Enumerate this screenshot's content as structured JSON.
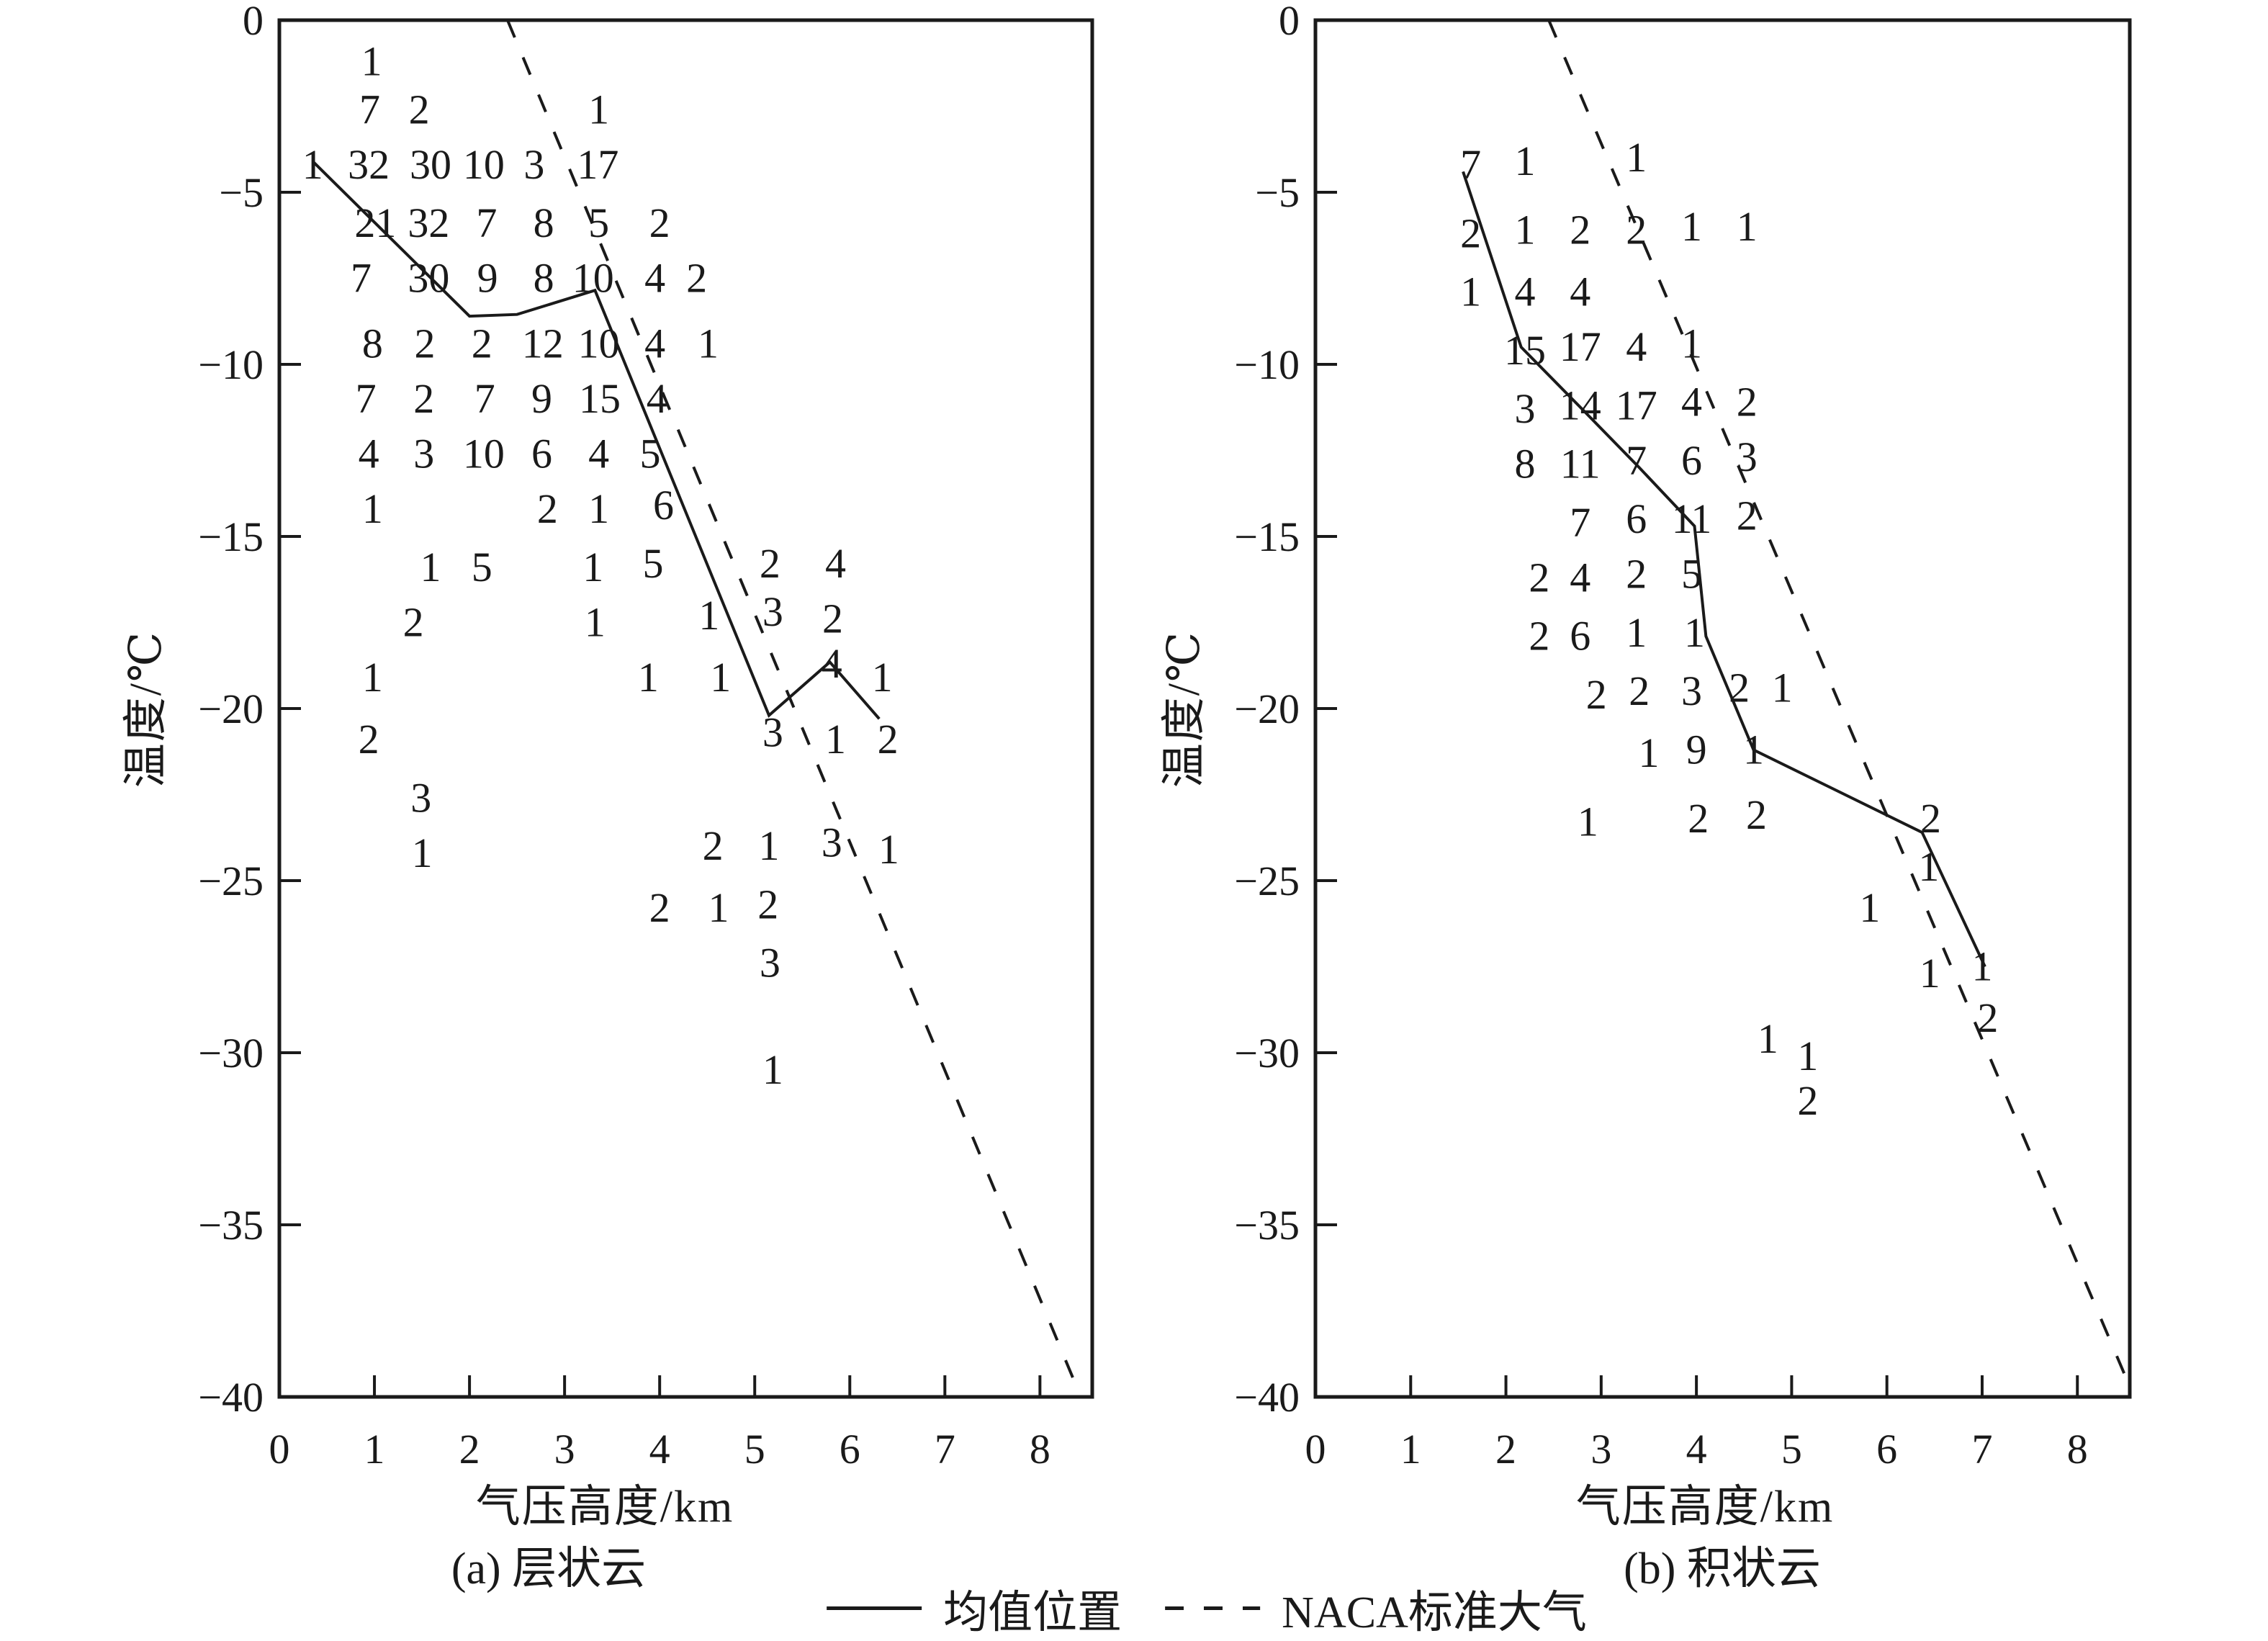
{
  "figure": {
    "description": "两幅云内观测频数分布图：温度随气压高度的散点计数，含均值位置折线与NACA标准大气虚线",
    "background": "#ffffff"
  },
  "colors": {
    "ink": "#1a1a1a",
    "background": "#ffffff"
  },
  "legend": {
    "mean_label": "均值位置",
    "naca_label": "NACA标准大气",
    "position": "bottom-center"
  },
  "chart_data": [
    {
      "type": "scatter",
      "panel": "a",
      "title": "(a) 层状云",
      "xlabel": "气压高度/km",
      "ylabel": "温度/℃",
      "xlim": [
        0,
        8.55
      ],
      "ylim": [
        -40,
        0
      ],
      "x_ticks": [
        0,
        1,
        2,
        3,
        4,
        5,
        6,
        7,
        8
      ],
      "y_ticks": [
        0,
        -5,
        -10,
        -15,
        -20,
        -25,
        -30,
        -35,
        -40
      ],
      "grid": false,
      "counts": [
        [
          0.97,
          -1.2,
          1
        ],
        [
          0.95,
          -2.6,
          7
        ],
        [
          1.47,
          -2.6,
          2
        ],
        [
          3.36,
          -2.6,
          1
        ],
        [
          0.35,
          -4.2,
          1
        ],
        [
          0.94,
          -4.2,
          32
        ],
        [
          1.59,
          -4.2,
          30
        ],
        [
          2.15,
          -4.2,
          10
        ],
        [
          2.68,
          -4.2,
          3
        ],
        [
          3.35,
          -4.2,
          17
        ],
        [
          1.01,
          -5.9,
          21
        ],
        [
          1.57,
          -5.9,
          32
        ],
        [
          2.18,
          -5.9,
          7
        ],
        [
          2.78,
          -5.9,
          8
        ],
        [
          3.36,
          -5.9,
          5
        ],
        [
          4.0,
          -5.9,
          2
        ],
        [
          0.86,
          -7.5,
          7
        ],
        [
          1.57,
          -7.5,
          30
        ],
        [
          2.19,
          -7.5,
          9
        ],
        [
          2.78,
          -7.5,
          8
        ],
        [
          3.3,
          -7.5,
          10
        ],
        [
          3.95,
          -7.5,
          4
        ],
        [
          4.39,
          -7.5,
          2
        ],
        [
          0.98,
          -9.4,
          8
        ],
        [
          1.53,
          -9.4,
          2
        ],
        [
          2.13,
          -9.4,
          2
        ],
        [
          2.77,
          -9.4,
          12
        ],
        [
          3.36,
          -9.4,
          10
        ],
        [
          3.95,
          -9.4,
          4
        ],
        [
          4.51,
          -9.4,
          1
        ],
        [
          0.91,
          -11.0,
          7
        ],
        [
          1.52,
          -11.0,
          2
        ],
        [
          2.16,
          -11.0,
          7
        ],
        [
          2.76,
          -11.0,
          9
        ],
        [
          3.37,
          -11.0,
          15
        ],
        [
          3.97,
          -11.0,
          4
        ],
        [
          0.94,
          -12.6,
          4
        ],
        [
          1.52,
          -12.6,
          3
        ],
        [
          2.15,
          -12.6,
          10
        ],
        [
          2.76,
          -12.6,
          6
        ],
        [
          3.36,
          -12.6,
          4
        ],
        [
          3.9,
          -12.6,
          5
        ],
        [
          0.98,
          -14.2,
          1
        ],
        [
          2.82,
          -14.2,
          2
        ],
        [
          3.36,
          -14.2,
          1
        ],
        [
          4.04,
          -14.1,
          6
        ],
        [
          1.59,
          -15.9,
          1
        ],
        [
          2.13,
          -15.9,
          5
        ],
        [
          3.3,
          -15.9,
          1
        ],
        [
          3.93,
          -15.8,
          5
        ],
        [
          5.16,
          -15.8,
          2
        ],
        [
          5.85,
          -15.8,
          4
        ],
        [
          1.41,
          -17.5,
          2
        ],
        [
          3.32,
          -17.5,
          1
        ],
        [
          4.52,
          -17.3,
          1
        ],
        [
          5.19,
          -17.2,
          3
        ],
        [
          5.82,
          -17.4,
          2
        ],
        [
          0.98,
          -19.1,
          1
        ],
        [
          3.88,
          -19.1,
          1
        ],
        [
          4.64,
          -19.1,
          1
        ],
        [
          5.81,
          -18.7,
          4
        ],
        [
          6.34,
          -19.1,
          1
        ],
        [
          0.94,
          -20.9,
          2
        ],
        [
          5.19,
          -20.7,
          3
        ],
        [
          5.85,
          -20.9,
          1
        ],
        [
          6.4,
          -20.9,
          2
        ],
        [
          1.49,
          -22.6,
          3
        ],
        [
          1.5,
          -24.2,
          1
        ],
        [
          4.56,
          -24.0,
          2
        ],
        [
          5.15,
          -24.0,
          1
        ],
        [
          5.81,
          -23.9,
          3
        ],
        [
          6.41,
          -24.1,
          1
        ],
        [
          4.0,
          -25.8,
          2
        ],
        [
          4.62,
          -25.8,
          1
        ],
        [
          5.14,
          -25.7,
          2
        ],
        [
          5.16,
          -27.4,
          3
        ],
        [
          5.19,
          -30.5,
          1
        ]
      ],
      "series": [
        {
          "name": "均值位置",
          "style": "solid",
          "points": [
            [
              0.35,
              -4.1
            ],
            [
              2.0,
              -8.6
            ],
            [
              2.5,
              -8.55
            ],
            [
              3.32,
              -7.85
            ],
            [
              5.15,
              -20.2
            ],
            [
              5.79,
              -18.65
            ],
            [
              6.31,
              -20.3
            ]
          ]
        },
        {
          "name": "NACA标准大气",
          "style": "dashed",
          "points": [
            [
              2.4,
              0
            ],
            [
              8.43,
              -40
            ]
          ]
        }
      ]
    },
    {
      "type": "scatter",
      "panel": "b",
      "title": "(b) 积状云",
      "xlabel": "气压高度/km",
      "ylabel": "温度/℃",
      "xlim": [
        0,
        8.55
      ],
      "ylim": [
        -40,
        0
      ],
      "x_ticks": [
        0,
        1,
        2,
        3,
        4,
        5,
        6,
        7,
        8
      ],
      "y_ticks": [
        0,
        -5,
        -10,
        -15,
        -20,
        -25,
        -30,
        -35,
        -40
      ],
      "grid": false,
      "counts": [
        [
          1.63,
          -4.2,
          7
        ],
        [
          2.2,
          -4.1,
          1
        ],
        [
          3.37,
          -4.0,
          1
        ],
        [
          1.63,
          -6.2,
          2
        ],
        [
          2.2,
          -6.1,
          1
        ],
        [
          2.78,
          -6.1,
          2
        ],
        [
          3.37,
          -6.1,
          2
        ],
        [
          3.95,
          -6.0,
          1
        ],
        [
          4.53,
          -6.0,
          1
        ],
        [
          1.63,
          -7.9,
          1
        ],
        [
          2.2,
          -7.9,
          4
        ],
        [
          2.78,
          -7.9,
          4
        ],
        [
          2.2,
          -9.6,
          15
        ],
        [
          2.78,
          -9.5,
          17
        ],
        [
          3.37,
          -9.5,
          4
        ],
        [
          3.95,
          -9.4,
          1
        ],
        [
          2.2,
          -11.3,
          3
        ],
        [
          2.78,
          -11.2,
          14
        ],
        [
          3.37,
          -11.2,
          17
        ],
        [
          3.95,
          -11.1,
          4
        ],
        [
          4.53,
          -11.1,
          2
        ],
        [
          2.2,
          -12.9,
          8
        ],
        [
          2.78,
          -12.9,
          11
        ],
        [
          3.37,
          -12.8,
          7
        ],
        [
          3.95,
          -12.8,
          6
        ],
        [
          4.53,
          -12.7,
          3
        ],
        [
          2.78,
          -14.6,
          7
        ],
        [
          3.37,
          -14.5,
          6
        ],
        [
          3.95,
          -14.5,
          11
        ],
        [
          4.53,
          -14.4,
          2
        ],
        [
          2.35,
          -16.2,
          2
        ],
        [
          2.78,
          -16.2,
          4
        ],
        [
          3.37,
          -16.1,
          2
        ],
        [
          3.95,
          -16.1,
          5
        ],
        [
          2.35,
          -17.9,
          2
        ],
        [
          2.78,
          -17.9,
          6
        ],
        [
          3.37,
          -17.8,
          1
        ],
        [
          3.98,
          -17.8,
          1
        ],
        [
          2.95,
          -19.6,
          2
        ],
        [
          3.4,
          -19.5,
          2
        ],
        [
          3.95,
          -19.5,
          3
        ],
        [
          4.45,
          -19.4,
          2
        ],
        [
          4.9,
          -19.4,
          1
        ],
        [
          3.5,
          -21.3,
          1
        ],
        [
          4.0,
          -21.2,
          9
        ],
        [
          4.6,
          -21.2,
          1
        ],
        [
          2.86,
          -23.3,
          1
        ],
        [
          4.02,
          -23.2,
          2
        ],
        [
          4.63,
          -23.1,
          2
        ],
        [
          6.46,
          -23.2,
          2
        ],
        [
          6.44,
          -24.6,
          1
        ],
        [
          5.82,
          -25.8,
          1
        ],
        [
          6.45,
          -27.7,
          1
        ],
        [
          7.0,
          -27.5,
          1
        ],
        [
          7.06,
          -29.0,
          2
        ],
        [
          4.75,
          -29.6,
          1
        ],
        [
          5.17,
          -30.1,
          1
        ],
        [
          5.17,
          -31.4,
          2
        ]
      ],
      "series": [
        {
          "name": "均值位置",
          "style": "solid",
          "points": [
            [
              1.55,
              -4.4
            ],
            [
              2.16,
              -9.5
            ],
            [
              2.8,
              -11.3
            ],
            [
              3.4,
              -13.0
            ],
            [
              3.98,
              -14.7
            ],
            [
              4.1,
              -17.9
            ],
            [
              4.6,
              -21.2
            ],
            [
              6.37,
              -23.6
            ],
            [
              7.03,
              -27.5
            ]
          ]
        },
        {
          "name": "NACA标准大气",
          "style": "dashed",
          "points": [
            [
              2.45,
              0
            ],
            [
              8.55,
              -39.7
            ]
          ]
        }
      ]
    }
  ]
}
